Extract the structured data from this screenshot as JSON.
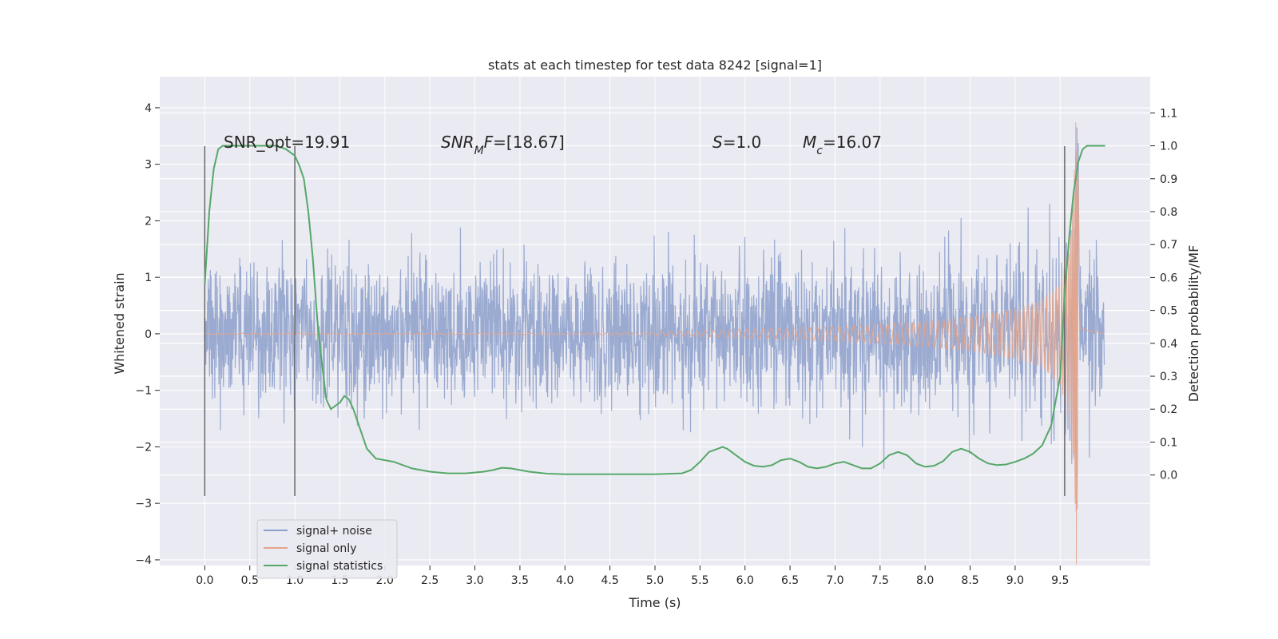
{
  "chart_data": {
    "type": "line",
    "title": "stats at each timestep for test data 8242 [signal=1]",
    "xlabel": "Time (s)",
    "ylabel": "Whitened strain",
    "y2label": "Detection probability/MF",
    "xlim": [
      -0.5,
      10.5
    ],
    "ylim": [
      -4.1,
      4.55
    ],
    "y2lim": [
      -0.275,
      1.21
    ],
    "x_ticks": [
      "0.0",
      "0.5",
      "1.0",
      "1.5",
      "2.0",
      "2.5",
      "3.0",
      "3.5",
      "4.0",
      "4.5",
      "5.0",
      "5.5",
      "6.0",
      "6.5",
      "7.0",
      "7.5",
      "8.0",
      "8.5",
      "9.0",
      "9.5"
    ],
    "y_ticks": [
      "−4",
      "−3",
      "−2",
      "−1",
      "0",
      "1",
      "2",
      "3",
      "4"
    ],
    "y2_ticks": [
      "0.0",
      "0.1",
      "0.2",
      "0.3",
      "0.4",
      "0.5",
      "0.6",
      "0.7",
      "0.8",
      "0.9",
      "1.0",
      "1.1"
    ],
    "grid": true,
    "legend_position": "lower-left",
    "series": [
      {
        "name": "signal+ noise",
        "color": "#8c9fca",
        "axis": "left",
        "description_values": {
          "x_range": [
            0.0,
            9.99
          ],
          "typical_amplitude": 1.0,
          "max": 3.65,
          "min": -3.7
        }
      },
      {
        "name": "signal only",
        "color": "#e6a48a",
        "axis": "left",
        "envelope": {
          "x": [
            0.0,
            4.0,
            5.0,
            5.5,
            6.0,
            6.5,
            7.0,
            7.5,
            8.0,
            8.5,
            9.0,
            9.3,
            9.5,
            9.6,
            9.65,
            9.68,
            9.7,
            9.72,
            10.0
          ],
          "amp": [
            0.01,
            0.015,
            0.03,
            0.05,
            0.08,
            0.1,
            0.13,
            0.17,
            0.22,
            0.3,
            0.45,
            0.6,
            0.9,
            1.5,
            2.6,
            4.15,
            3.2,
            0.1,
            0.0
          ]
        },
        "peak": {
          "x": 9.68,
          "y": 4.15
        }
      },
      {
        "name": "signal statistics",
        "color": "#55a868",
        "axis": "right",
        "x": [
          0.0,
          0.05,
          0.1,
          0.15,
          0.2,
          0.3,
          0.4,
          0.5,
          0.6,
          0.7,
          0.8,
          0.9,
          0.95,
          1.0,
          1.05,
          1.1,
          1.15,
          1.2,
          1.25,
          1.3,
          1.35,
          1.4,
          1.45,
          1.5,
          1.55,
          1.6,
          1.65,
          1.7,
          1.8,
          1.9,
          2.0,
          2.1,
          2.2,
          2.3,
          2.5,
          2.7,
          2.9,
          3.1,
          3.2,
          3.3,
          3.4,
          3.6,
          3.8,
          4.0,
          4.5,
          5.0,
          5.3,
          5.4,
          5.5,
          5.6,
          5.7,
          5.75,
          5.8,
          5.9,
          6.0,
          6.1,
          6.2,
          6.3,
          6.4,
          6.5,
          6.6,
          6.7,
          6.8,
          6.9,
          7.0,
          7.1,
          7.2,
          7.3,
          7.4,
          7.5,
          7.6,
          7.7,
          7.8,
          7.9,
          8.0,
          8.1,
          8.2,
          8.3,
          8.4,
          8.5,
          8.6,
          8.7,
          8.8,
          8.9,
          9.0,
          9.1,
          9.2,
          9.3,
          9.4,
          9.5,
          9.55,
          9.6,
          9.65,
          9.7,
          9.75,
          9.8,
          9.9,
          10.0
        ],
        "values": [
          0.58,
          0.8,
          0.93,
          0.99,
          1.0,
          1.0,
          1.0,
          1.0,
          1.0,
          1.0,
          1.0,
          0.99,
          0.98,
          0.97,
          0.94,
          0.9,
          0.8,
          0.66,
          0.47,
          0.34,
          0.23,
          0.2,
          0.21,
          0.22,
          0.24,
          0.23,
          0.2,
          0.16,
          0.08,
          0.05,
          0.045,
          0.04,
          0.03,
          0.02,
          0.01,
          0.005,
          0.005,
          0.01,
          0.015,
          0.022,
          0.02,
          0.01,
          0.004,
          0.002,
          0.002,
          0.002,
          0.005,
          0.015,
          0.04,
          0.07,
          0.08,
          0.085,
          0.08,
          0.06,
          0.04,
          0.028,
          0.025,
          0.03,
          0.045,
          0.05,
          0.04,
          0.025,
          0.02,
          0.025,
          0.035,
          0.04,
          0.03,
          0.02,
          0.02,
          0.035,
          0.06,
          0.07,
          0.06,
          0.035,
          0.025,
          0.028,
          0.042,
          0.07,
          0.08,
          0.07,
          0.05,
          0.035,
          0.03,
          0.032,
          0.04,
          0.05,
          0.065,
          0.09,
          0.15,
          0.3,
          0.55,
          0.72,
          0.86,
          0.95,
          0.99,
          1.0,
          1.0,
          1.0
        ]
      }
    ],
    "vertical_lines": [
      {
        "x": 0.0
      },
      {
        "x": 1.0
      },
      {
        "x": 9.55
      }
    ],
    "vertical_line_yrange": [
      -2.87,
      3.32
    ],
    "annotations": {
      "snr_opt": "SNR_opt=19.91",
      "snr_mf_prefix": "SNR",
      "snr_mf_sub": "M",
      "snr_mf_suffix": "F",
      "snr_mf_value": "=[18.67]",
      "s_symbol": "S",
      "s_value": "=1.0",
      "mc_symbol": "M",
      "mc_sub": "c",
      "mc_value": "=16.07"
    }
  }
}
